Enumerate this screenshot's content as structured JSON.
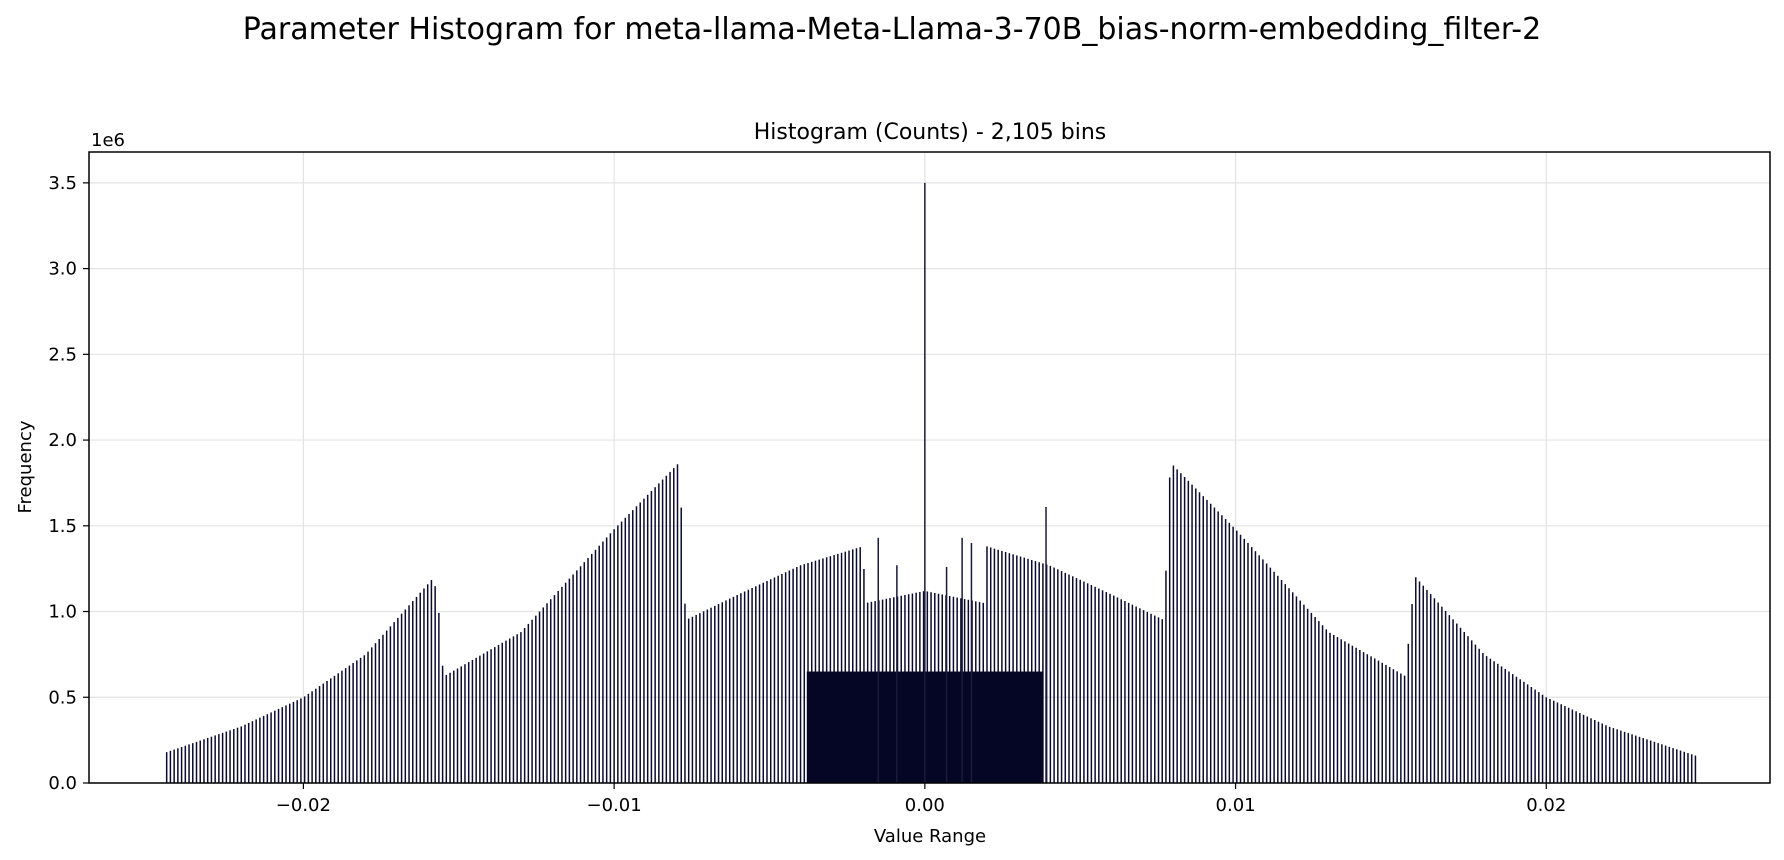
{
  "figure": {
    "suptitle": "Parameter Histogram for meta-llama-Meta-Llama-3-70B_bias-norm-embedding_filter-2"
  },
  "chart_data": {
    "type": "bar",
    "title": "Histogram (Counts) - 2,105 bins",
    "xlabel": "Value Range",
    "ylabel": "Frequency",
    "y_scale_label": "1e6",
    "xlim": [
      -0.0269,
      0.0272
    ],
    "ylim": [
      0,
      3.68
    ],
    "y_unit_multiplier": 1000000,
    "grid": true,
    "bar_color": "#0b0b2e",
    "x_ticks": [
      -0.02,
      -0.01,
      0.0,
      0.01,
      0.02
    ],
    "x_tick_labels": [
      "−0.02",
      "−0.01",
      "0.00",
      "0.01",
      "0.02"
    ],
    "y_ticks": [
      0.0,
      0.5,
      1.0,
      1.5,
      2.0,
      2.5,
      3.0,
      3.5
    ],
    "y_tick_labels": [
      "0.0",
      "0.5",
      "1.0",
      "1.5",
      "2.0",
      "2.5",
      "3.0",
      "3.5"
    ],
    "distribution_outline": [
      {
        "x": -0.0244,
        "y": 0.18
      },
      {
        "x": -0.022,
        "y": 0.33
      },
      {
        "x": -0.02,
        "y": 0.5
      },
      {
        "x": -0.018,
        "y": 0.75
      },
      {
        "x": -0.0158,
        "y": 1.2
      },
      {
        "x": -0.0156,
        "y": 0.94
      },
      {
        "x": -0.0155,
        "y": 0.62
      },
      {
        "x": -0.013,
        "y": 0.88
      },
      {
        "x": -0.01,
        "y": 1.48
      },
      {
        "x": -0.0079,
        "y": 1.87
      },
      {
        "x": -0.0078,
        "y": 1.43
      },
      {
        "x": -0.0077,
        "y": 0.95
      },
      {
        "x": -0.006,
        "y": 1.1
      },
      {
        "x": -0.004,
        "y": 1.27
      },
      {
        "x": -0.002,
        "y": 1.38
      },
      {
        "x": -0.0019,
        "y": 1.05
      },
      {
        "x": 0.0,
        "y": 1.12
      },
      {
        "x": 0.0019,
        "y": 1.05
      },
      {
        "x": 0.002,
        "y": 1.38
      },
      {
        "x": 0.004,
        "y": 1.27
      },
      {
        "x": 0.006,
        "y": 1.1
      },
      {
        "x": 0.0077,
        "y": 0.95
      },
      {
        "x": 0.0078,
        "y": 1.43
      },
      {
        "x": 0.0079,
        "y": 1.87
      },
      {
        "x": 0.01,
        "y": 1.48
      },
      {
        "x": 0.013,
        "y": 0.88
      },
      {
        "x": 0.0155,
        "y": 0.62
      },
      {
        "x": 0.0156,
        "y": 0.94
      },
      {
        "x": 0.0158,
        "y": 1.2
      },
      {
        "x": 0.018,
        "y": 0.75
      },
      {
        "x": 0.02,
        "y": 0.5
      },
      {
        "x": 0.022,
        "y": 0.33
      },
      {
        "x": 0.0248,
        "y": 0.16
      }
    ],
    "notable_bins": [
      {
        "x": 0.0,
        "y": 3.5
      },
      {
        "x": 0.0039,
        "y": 1.61
      },
      {
        "x": -0.0015,
        "y": 1.43
      },
      {
        "x": 0.0012,
        "y": 1.43
      },
      {
        "x": 0.0015,
        "y": 1.4
      },
      {
        "x": -0.0009,
        "y": 1.27
      },
      {
        "x": 0.0007,
        "y": 1.26
      }
    ]
  }
}
